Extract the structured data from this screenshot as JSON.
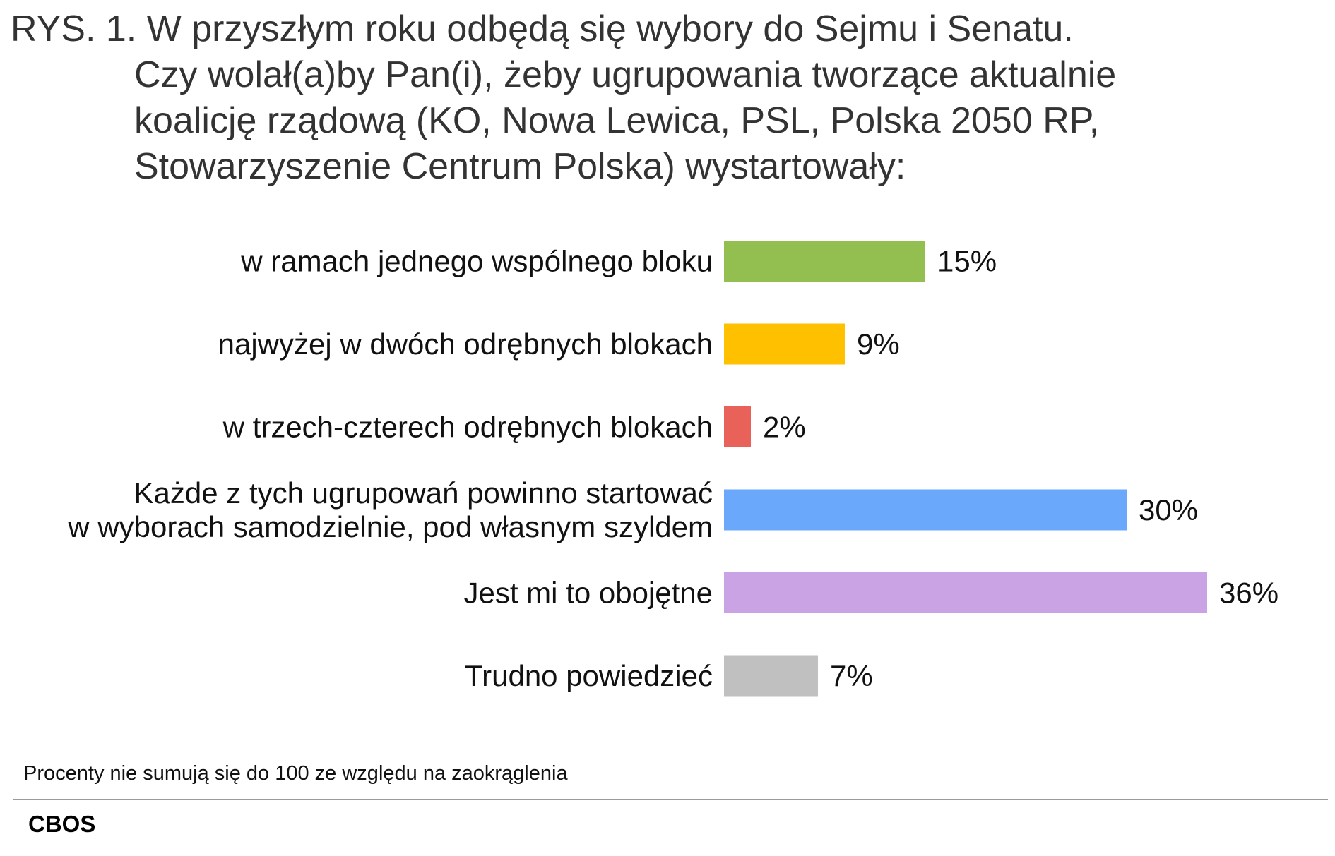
{
  "title_lines": [
    "RYS. 1. W przyszłym roku odbędą się wybory do Sejmu i Senatu.",
    "Czy wolał(a)by Pan(i), żeby ugrupowania tworzące aktualnie",
    "koalicję rządową (KO, Nowa Lewica, PSL, Polska 2050 RP,",
    "Stowarzyszenie Centrum Polska) wystartowały:"
  ],
  "footnote": "Procenty nie sumują się do 100 ze względu na zaokrąglenia",
  "source": "CBOS",
  "chart_data": {
    "type": "bar",
    "orientation": "horizontal",
    "categories": [
      "w ramach jednego wspólnego bloku",
      "najwyżej w dwóch odrębnych blokach",
      "w trzech-czterech odrębnych blokach",
      "Każde z tych ugrupowań powinno startować\nw wyborach samodzielnie, pod własnym szyldem",
      "Jest mi to obojętne",
      "Trudno powiedzieć"
    ],
    "values": [
      15,
      9,
      2,
      30,
      36,
      7
    ],
    "value_labels": [
      "15%",
      "9%",
      "2%",
      "30%",
      "36%",
      "7%"
    ],
    "colors": [
      "#92bf50",
      "#ffc000",
      "#e8625a",
      "#6aa8fc",
      "#c9a3e4",
      "#c0c0c0"
    ],
    "unit": "%",
    "grid": false,
    "legend": "none"
  }
}
